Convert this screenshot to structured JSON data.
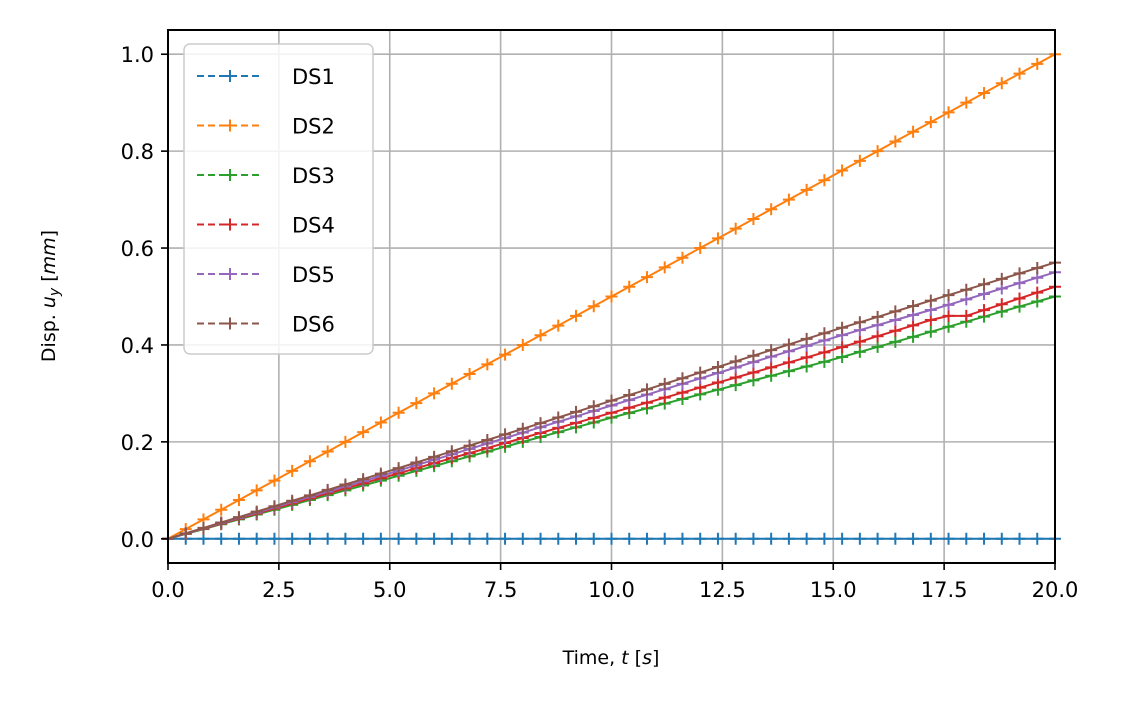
{
  "chart_data": {
    "type": "line",
    "title": "",
    "xlabel": "Time, t [s]",
    "xlabel_prefix": "Time, ",
    "xlabel_var": "t",
    "xlabel_unit_open": " [",
    "xlabel_unit": "s",
    "xlabel_unit_close": "]",
    "ylabel": "Disp. u_y [mm]",
    "ylabel_prefix": "Disp. ",
    "ylabel_var": "u",
    "ylabel_sub": "y",
    "ylabel_unit_open": "  [",
    "ylabel_unit": "mm",
    "ylabel_unit_close": "]",
    "xlim": [
      0,
      20
    ],
    "ylim": [
      -0.05,
      1.05
    ],
    "xticks": [
      0.0,
      2.5,
      5.0,
      7.5,
      10.0,
      12.5,
      15.0,
      17.5,
      20.0
    ],
    "xtick_labels": [
      "0.0",
      "2.5",
      "5.0",
      "7.5",
      "10.0",
      "12.5",
      "15.0",
      "17.5",
      "20.0"
    ],
    "yticks": [
      0.0,
      0.2,
      0.4,
      0.6,
      0.8,
      1.0
    ],
    "ytick_labels": [
      "0.0",
      "0.2",
      "0.4",
      "0.6",
      "0.8",
      "1.0"
    ],
    "grid": true,
    "legend_position": "top-left",
    "marker": "+",
    "x_step": 0.4,
    "series": [
      {
        "name": "DS1",
        "color": "#1f77b4",
        "anchors": [
          [
            0,
            0
          ],
          [
            20,
            0
          ]
        ]
      },
      {
        "name": "DS2",
        "color": "#ff7f0e",
        "anchors": [
          [
            0,
            0
          ],
          [
            20,
            1.0
          ]
        ]
      },
      {
        "name": "DS3",
        "color": "#2ca02c",
        "anchors": [
          [
            0,
            0
          ],
          [
            5,
            0.125
          ],
          [
            10,
            0.25
          ],
          [
            15,
            0.37
          ],
          [
            20,
            0.5
          ]
        ]
      },
      {
        "name": "DS4",
        "color": "#d62728",
        "anchors": [
          [
            0,
            0
          ],
          [
            5,
            0.13
          ],
          [
            10,
            0.26
          ],
          [
            15,
            0.39
          ],
          [
            17.5,
            0.46
          ],
          [
            18,
            0.46
          ],
          [
            20,
            0.52
          ]
        ]
      },
      {
        "name": "DS5",
        "color": "#9467bd",
        "anchors": [
          [
            0,
            0
          ],
          [
            5,
            0.135
          ],
          [
            10,
            0.275
          ],
          [
            15,
            0.415
          ],
          [
            17.5,
            0.48
          ],
          [
            20,
            0.55
          ]
        ]
      },
      {
        "name": "DS6",
        "color": "#8c564b",
        "anchors": [
          [
            0,
            0
          ],
          [
            5,
            0.14
          ],
          [
            10,
            0.285
          ],
          [
            15,
            0.43
          ],
          [
            17.5,
            0.5
          ],
          [
            20,
            0.57
          ]
        ]
      }
    ]
  }
}
